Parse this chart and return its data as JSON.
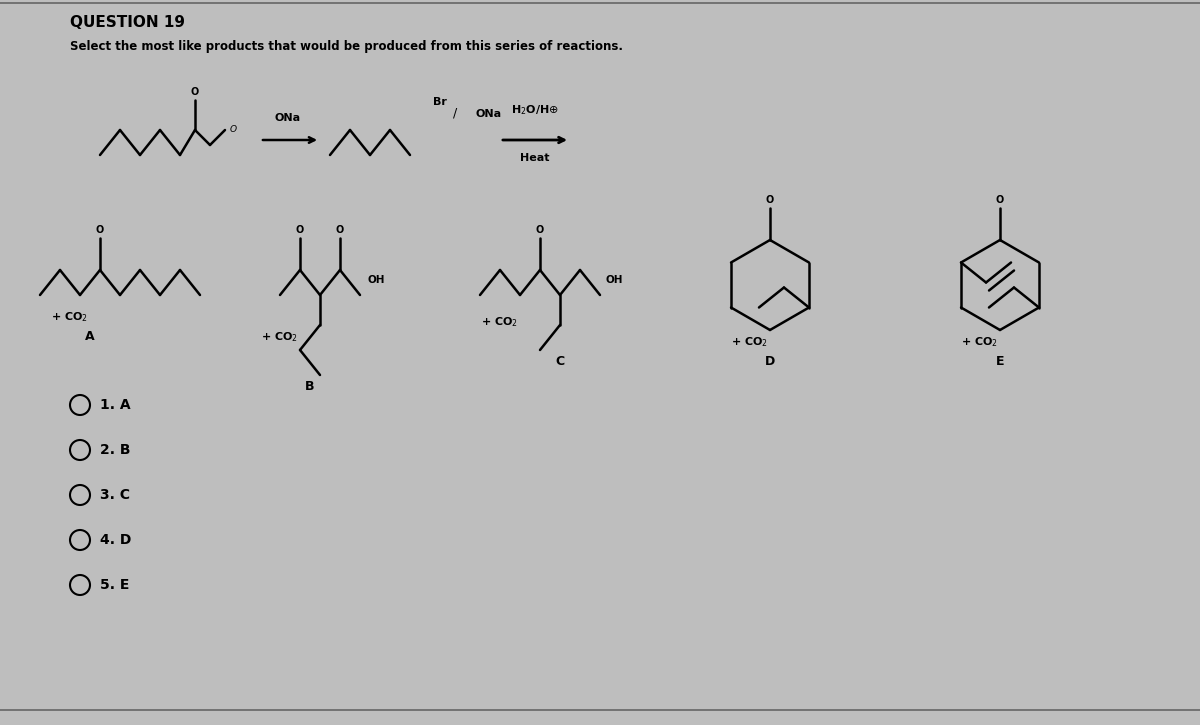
{
  "title": "QUESTION 19",
  "subtitle": "Select the most like products that would be produced from this series of reactions.",
  "bg_color": "#bebebe",
  "text_color": "#000000",
  "options": [
    "1. A",
    "2. B",
    "3. C",
    "4. D",
    "5. E"
  ],
  "lw": 1.8
}
